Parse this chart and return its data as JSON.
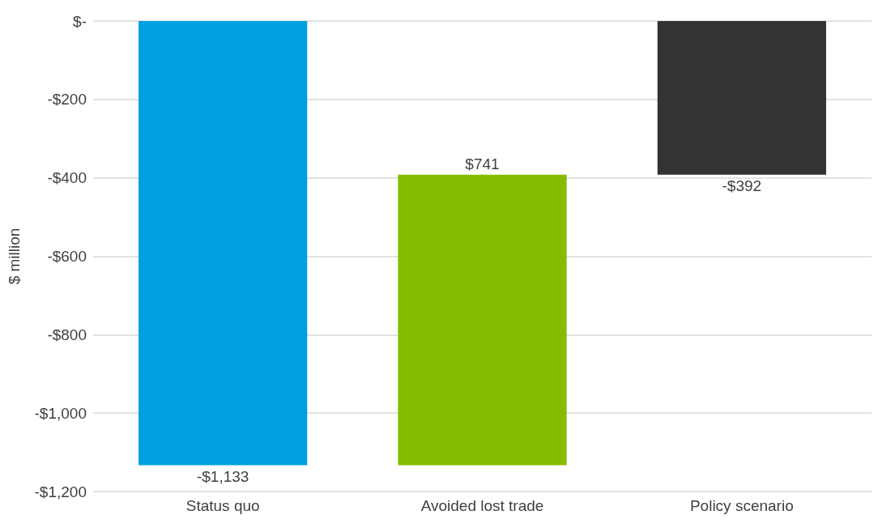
{
  "chart_data": {
    "type": "bar",
    "ylabel": "$ million",
    "categories": [
      "Status quo",
      "Avoided lost trade",
      "Policy scenario"
    ],
    "values": [
      -1133,
      741,
      -392
    ],
    "base": [
      0,
      -1133,
      0
    ],
    "colors": [
      "#009fe0",
      "#84bd00",
      "#333333"
    ],
    "value_labels": [
      "-$1,133",
      "$741",
      "-$392"
    ],
    "ylim": [
      -1200,
      0
    ],
    "yticks": [
      {
        "value": -1200,
        "label": "-$1,200"
      },
      {
        "value": -1000,
        "label": "-$1,000"
      },
      {
        "value": -800,
        "label": "-$800"
      },
      {
        "value": -600,
        "label": "-$600"
      },
      {
        "value": -400,
        "label": "-$400"
      },
      {
        "value": -200,
        "label": "-$200"
      },
      {
        "value": 0,
        "label": "$-"
      }
    ],
    "grid": "y"
  }
}
